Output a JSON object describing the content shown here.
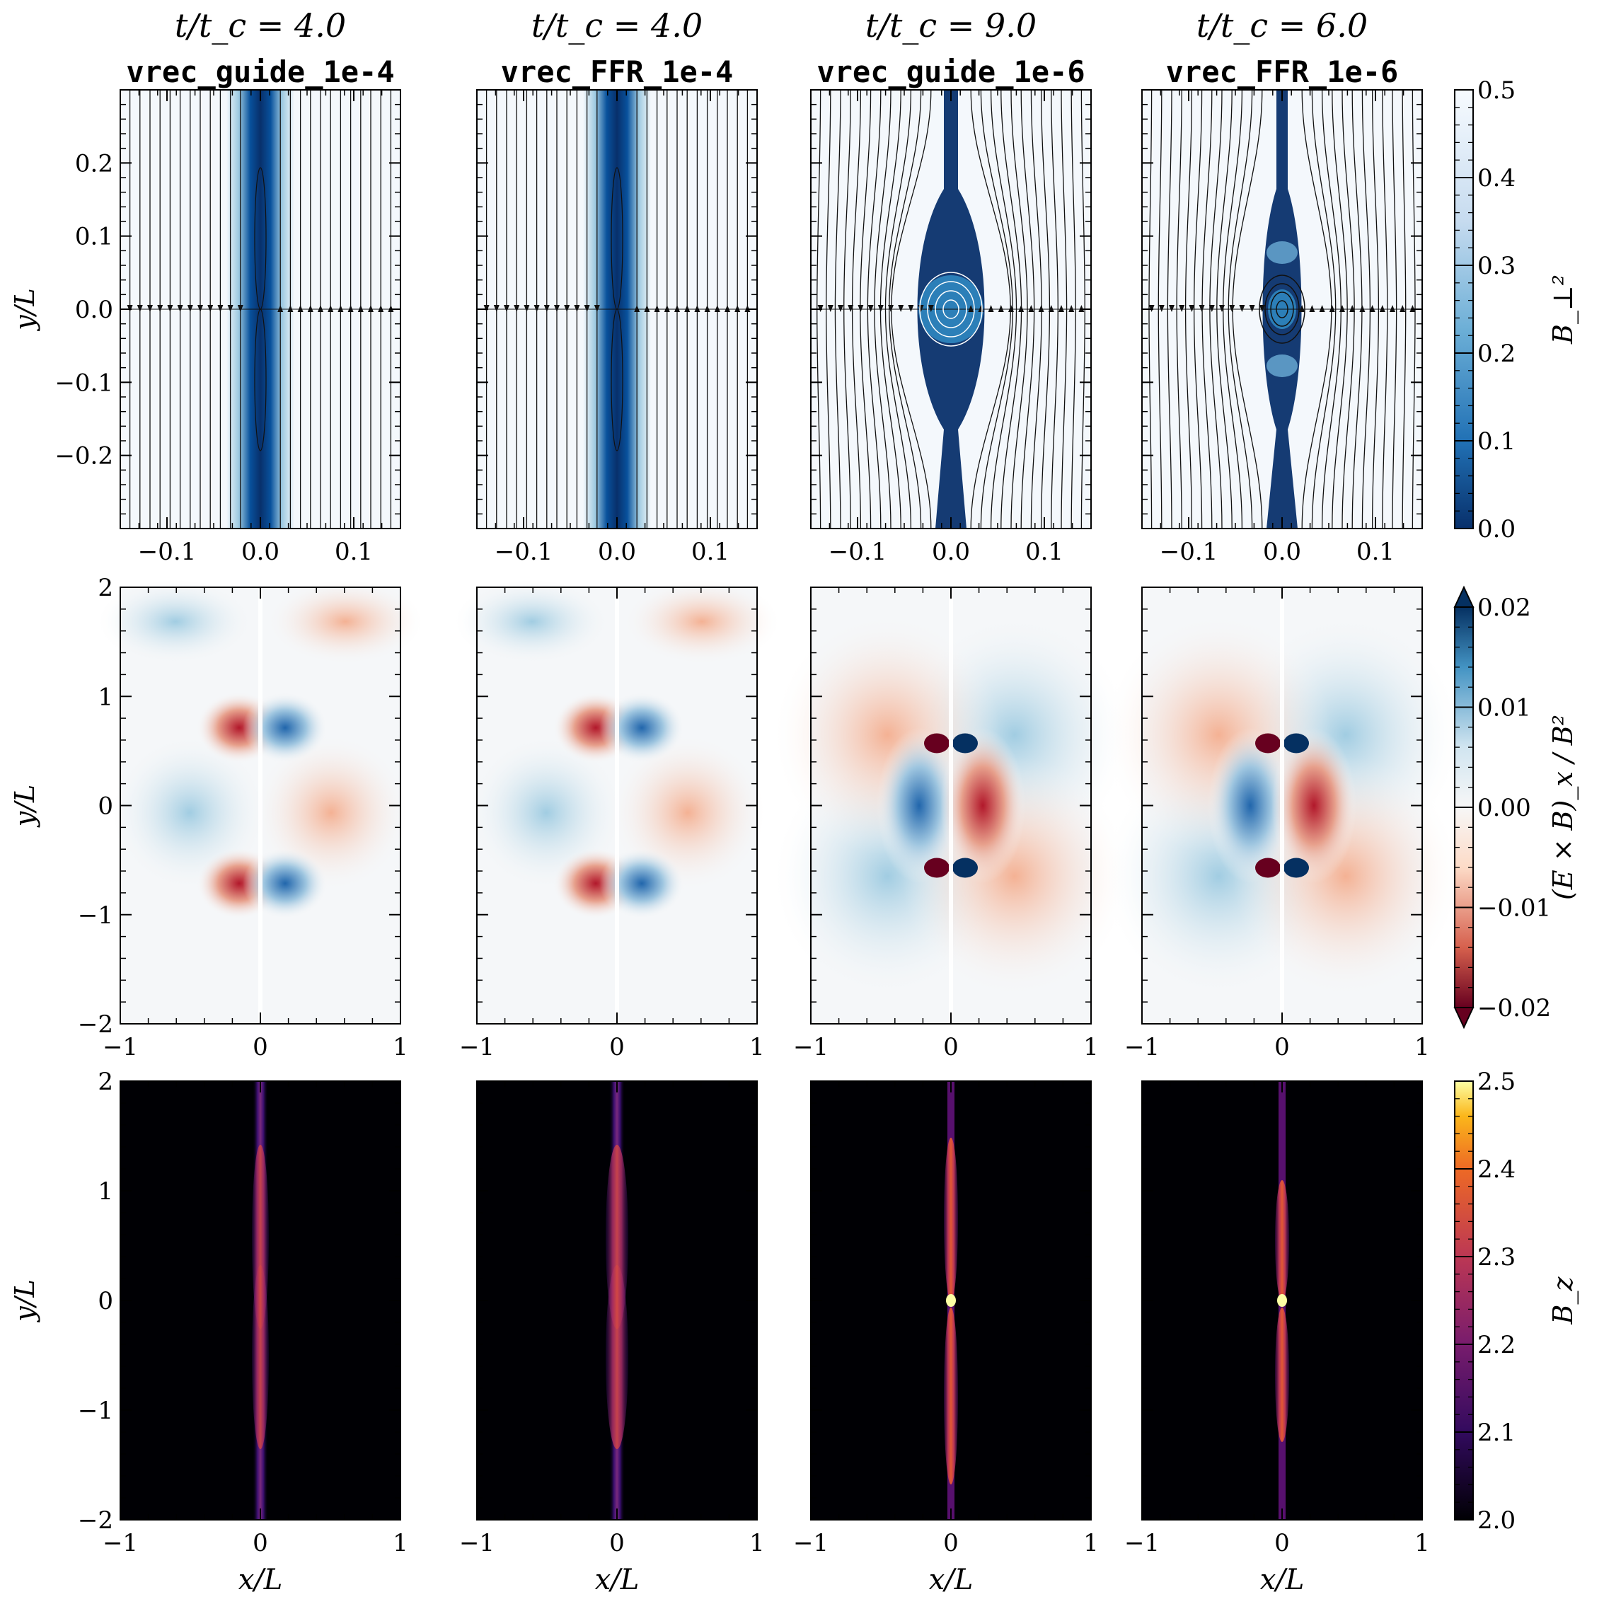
{
  "columns": [
    {
      "time": "t/t_c = 4.0",
      "run": "vrec_guide_1e-4"
    },
    {
      "time": "t/t_c = 4.0",
      "run": "vrec_FFR_1e-4"
    },
    {
      "time": "t/t_c = 9.0",
      "run": "vrec_guide_1e-6"
    },
    {
      "time": "t/t_c = 6.0",
      "run": "vrec_FFR_1e-6"
    }
  ],
  "chart_data": [
    {
      "type": "heatmap",
      "row": 1,
      "quantity_label": "B_⊥²",
      "colormap": "Blues_r",
      "clim": [
        0.0,
        0.5
      ],
      "colorbar_ticks": [
        "0.0",
        "0.1",
        "0.2",
        "0.3",
        "0.4",
        "0.5"
      ],
      "xlabel": "",
      "ylabel": "y/L",
      "xlim": [
        -0.15,
        0.15
      ],
      "ylim": [
        -0.3,
        0.3
      ],
      "xticks": [
        "−0.1",
        "0.0",
        "0.1"
      ],
      "yticks": [
        "−0.2",
        "−0.1",
        "0.0",
        "0.1",
        "0.2"
      ],
      "overlay": "magnetic field lines (streamlines)"
    },
    {
      "type": "heatmap",
      "row": 2,
      "quantity_label": "(E × B)_x / B²",
      "colormap": "RdBu",
      "clim": [
        -0.02,
        0.02
      ],
      "colorbar_ticks": [
        "−0.02",
        "−0.01",
        "0.00",
        "0.01",
        "0.02"
      ],
      "colorbar_extend": "both",
      "xlabel": "",
      "ylabel": "y/L",
      "xlim": [
        -1,
        1
      ],
      "ylim": [
        -2,
        2
      ],
      "xticks": [
        "−1",
        "0",
        "1"
      ],
      "yticks": [
        "−2",
        "−1",
        "0",
        "1",
        "2"
      ]
    },
    {
      "type": "heatmap",
      "row": 3,
      "quantity_label": "B_z",
      "colormap": "inferno",
      "clim": [
        2.0,
        2.5
      ],
      "colorbar_ticks": [
        "2.0",
        "2.1",
        "2.2",
        "2.3",
        "2.4",
        "2.5"
      ],
      "xlabel": "x/L",
      "ylabel": "y/L",
      "xlim": [
        -1,
        1
      ],
      "ylim": [
        -2,
        2
      ],
      "xticks": [
        "−1",
        "0",
        "1"
      ],
      "yticks": [
        "−2",
        "−1",
        "0",
        "1",
        "2"
      ]
    }
  ]
}
